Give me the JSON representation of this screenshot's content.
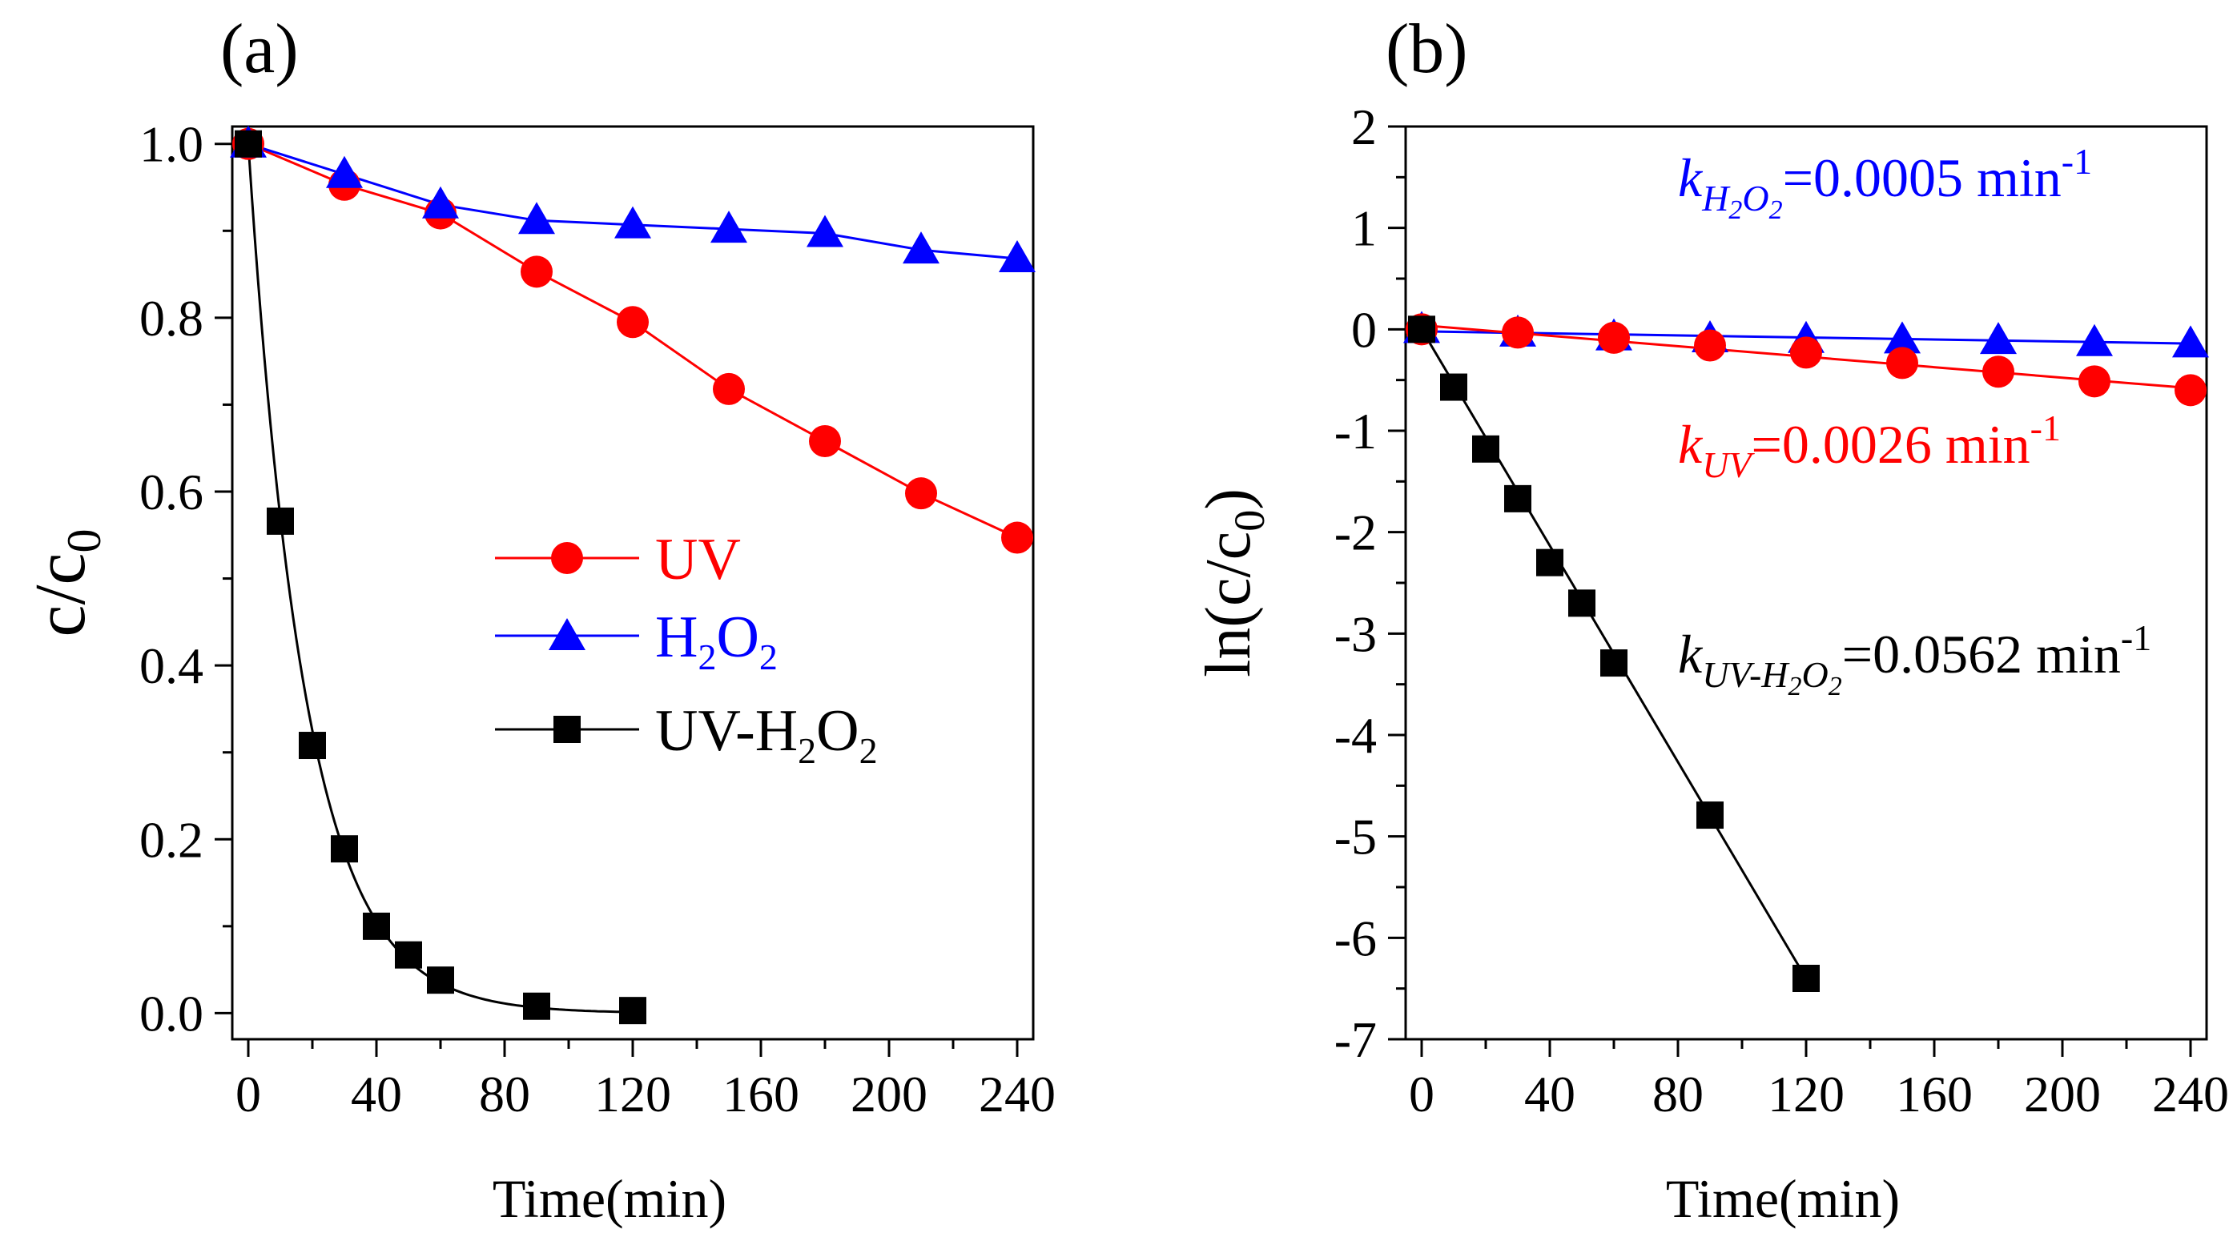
{
  "chart_data": [
    {
      "type": "line",
      "panel_label": "(a)",
      "xlabel": "Time(min)",
      "ylabel_main": "c/c",
      "ylabel_sub": "0",
      "xlim": [
        -5,
        245
      ],
      "ylim": [
        -0.03,
        1.02
      ],
      "xticks": [
        0,
        40,
        80,
        120,
        160,
        200,
        240
      ],
      "yticks": [
        0.0,
        0.2,
        0.4,
        0.6,
        0.8,
        1.0
      ],
      "ytick_labels": [
        "0.0",
        "0.2",
        "0.4",
        "0.6",
        "0.8",
        "1.0"
      ],
      "legend_position": "center",
      "series": [
        {
          "key": "uv",
          "name": "UV",
          "color": "#ff0000",
          "marker": "circle",
          "x": [
            0,
            30,
            60,
            90,
            120,
            150,
            180,
            210,
            240
          ],
          "y": [
            1.0,
            0.953,
            0.92,
            0.853,
            0.795,
            0.718,
            0.658,
            0.598,
            0.547
          ]
        },
        {
          "key": "h2o2",
          "name_main": "H",
          "name_sub1": "2",
          "name_mid": "O",
          "name_sub2": "2",
          "color": "#0000ff",
          "marker": "triangle",
          "x": [
            0,
            30,
            60,
            90,
            120,
            150,
            180,
            210,
            240
          ],
          "y": [
            1.0,
            0.965,
            0.93,
            0.912,
            0.907,
            0.902,
            0.897,
            0.878,
            0.868
          ]
        },
        {
          "key": "uvh2o2",
          "name_main": "UV-H",
          "name_sub1": "2",
          "name_mid": "O",
          "name_sub2": "2",
          "color": "#000000",
          "marker": "square",
          "x": [
            0,
            10,
            20,
            30,
            40,
            50,
            60,
            90,
            120
          ],
          "y": [
            1.0,
            0.566,
            0.308,
            0.189,
            0.1,
            0.067,
            0.038,
            0.008,
            0.003
          ]
        }
      ]
    },
    {
      "type": "line",
      "panel_label": "(b)",
      "xlabel": "Time(min)",
      "ylabel_main": "ln(c/c",
      "ylabel_sub": "0",
      "ylabel_end": ")",
      "xlim": [
        -5,
        245
      ],
      "ylim": [
        -7,
        2
      ],
      "xticks": [
        0,
        40,
        80,
        120,
        160,
        200,
        240
      ],
      "yticks": [
        -7,
        -6,
        -5,
        -4,
        -3,
        -2,
        -1,
        0,
        1,
        2
      ],
      "ytick_labels": [
        "-7",
        "-6",
        "-5",
        "-4",
        "-3",
        "-2",
        "-1",
        "0",
        "1",
        "2"
      ],
      "series": [
        {
          "key": "h2o2",
          "color": "#0000ff",
          "marker": "triangle",
          "x": [
            0,
            30,
            60,
            90,
            120,
            150,
            180,
            210,
            240
          ],
          "y": [
            0.0,
            -0.036,
            -0.073,
            -0.092,
            -0.098,
            -0.103,
            -0.109,
            -0.13,
            -0.142
          ],
          "fit": [
            [
              0,
              -0.02
            ],
            [
              240,
              -0.14
            ]
          ]
        },
        {
          "key": "uv",
          "color": "#ff0000",
          "marker": "circle",
          "x": [
            0,
            30,
            60,
            90,
            120,
            150,
            180,
            210,
            240
          ],
          "y": [
            0.0,
            -0.032,
            -0.083,
            -0.159,
            -0.229,
            -0.332,
            -0.418,
            -0.513,
            -0.6
          ],
          "fit": [
            [
              0,
              0.04
            ],
            [
              240,
              -0.58
            ]
          ]
        },
        {
          "key": "uvh2o2",
          "color": "#000000",
          "marker": "square",
          "x": [
            0,
            10,
            20,
            30,
            40,
            50,
            60,
            90,
            120
          ],
          "y": [
            0.0,
            -0.57,
            -1.18,
            -1.67,
            -2.3,
            -2.7,
            -3.29,
            -4.79,
            -6.4
          ],
          "fit": [
            [
              0,
              0.0
            ],
            [
              120,
              -6.4
            ]
          ]
        }
      ],
      "annotations": {
        "h2o2": {
          "k": "k",
          "sub1": "H",
          "subsub1": "2",
          "sub2": "O",
          "subsub2": "2",
          "value": "=0.0005 min",
          "exp": "-1",
          "color": "#0000ff"
        },
        "uv": {
          "k": "k",
          "sub": "UV",
          "value": "=0.0026 min",
          "exp": "-1",
          "color": "#ff0000"
        },
        "uvh2o2": {
          "k": "k",
          "sub1": "UV-H",
          "subsub1": "2",
          "sub2": "O",
          "subsub2": "2",
          "value": "=0.0562 min",
          "exp": "-1",
          "color": "#000000"
        }
      }
    }
  ]
}
